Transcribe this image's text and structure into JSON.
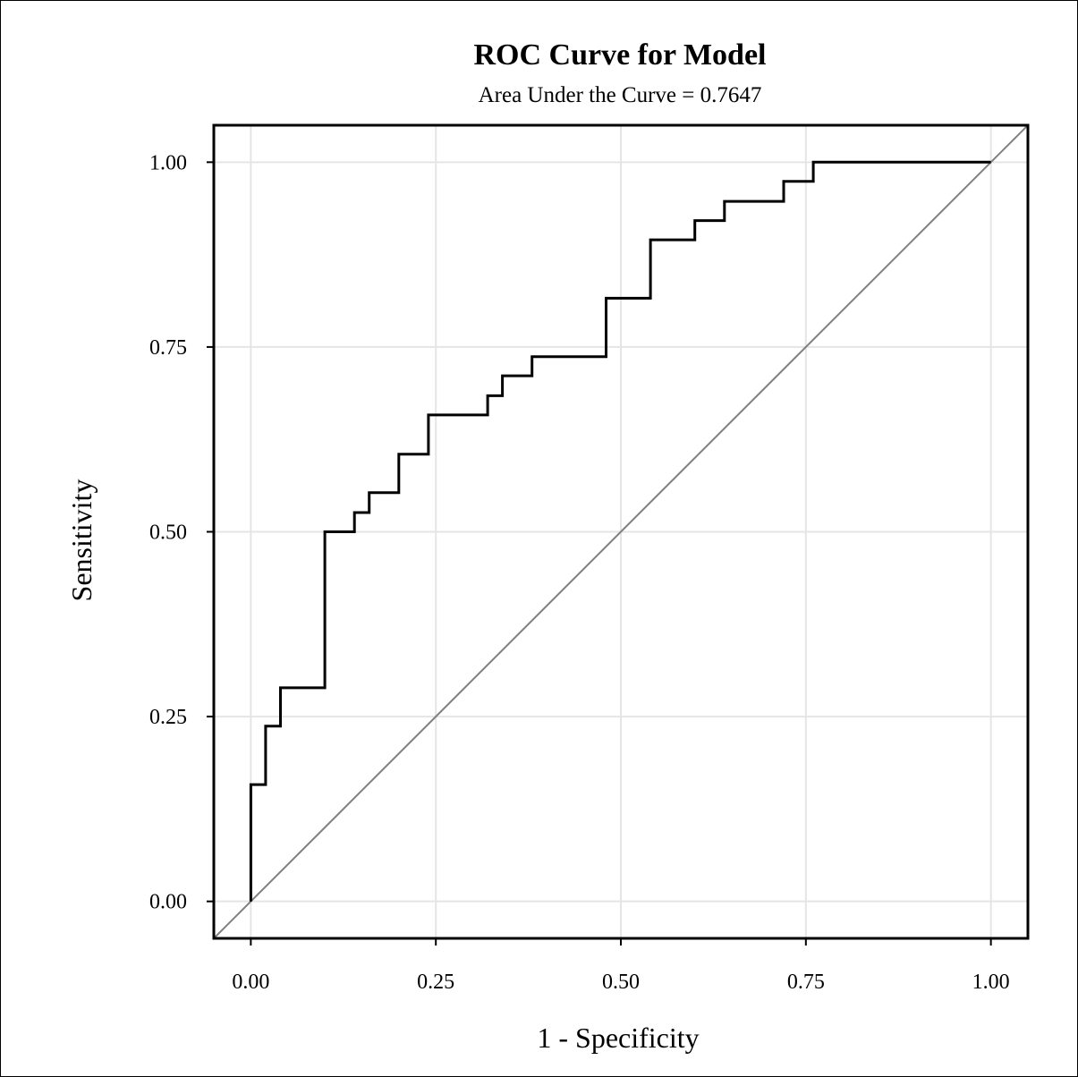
{
  "chart_data": {
    "type": "line",
    "title": "ROC Curve for Model",
    "subtitle": "Area Under the Curve = 0.7647",
    "xlabel": "1 - Specificity",
    "ylabel": "Sensitivity",
    "xlim": [
      -0.05,
      1.05
    ],
    "ylim": [
      -0.05,
      1.05
    ],
    "x_ticks": [
      0,
      0.25,
      0.5,
      0.75,
      1
    ],
    "x_tick_labels": [
      "0.00",
      "0.25",
      "0.50",
      "0.75",
      "1.00"
    ],
    "y_ticks": [
      0,
      0.25,
      0.5,
      0.75,
      1
    ],
    "y_tick_labels": [
      "0.00",
      "0.25",
      "0.50",
      "0.75",
      "1.00"
    ],
    "grid": true,
    "colors": {
      "curve": "#000000",
      "diagonal": "#808080",
      "grid": "#e5e5e5"
    },
    "series": [
      {
        "style": "step",
        "x": [
          0.0,
          0.0,
          0.02,
          0.02,
          0.04,
          0.04,
          0.1,
          0.1,
          0.14,
          0.14,
          0.16,
          0.16,
          0.2,
          0.2,
          0.24,
          0.24,
          0.32,
          0.32,
          0.34,
          0.34,
          0.38,
          0.38,
          0.48,
          0.48,
          0.54,
          0.54,
          0.6,
          0.6,
          0.64,
          0.64,
          0.72,
          0.72,
          0.76,
          0.76,
          1.0
        ],
        "y": [
          0.0,
          0.158,
          0.158,
          0.237,
          0.237,
          0.289,
          0.289,
          0.5,
          0.5,
          0.526,
          0.526,
          0.553,
          0.553,
          0.605,
          0.605,
          0.658,
          0.658,
          0.684,
          0.684,
          0.711,
          0.711,
          0.737,
          0.737,
          0.816,
          0.816,
          0.895,
          0.895,
          0.921,
          0.921,
          0.947,
          0.947,
          0.974,
          0.974,
          1.0,
          1.0
        ]
      },
      {
        "style": "reference",
        "x": [
          -0.05,
          1.05
        ],
        "y": [
          -0.05,
          1.05
        ]
      }
    ]
  }
}
